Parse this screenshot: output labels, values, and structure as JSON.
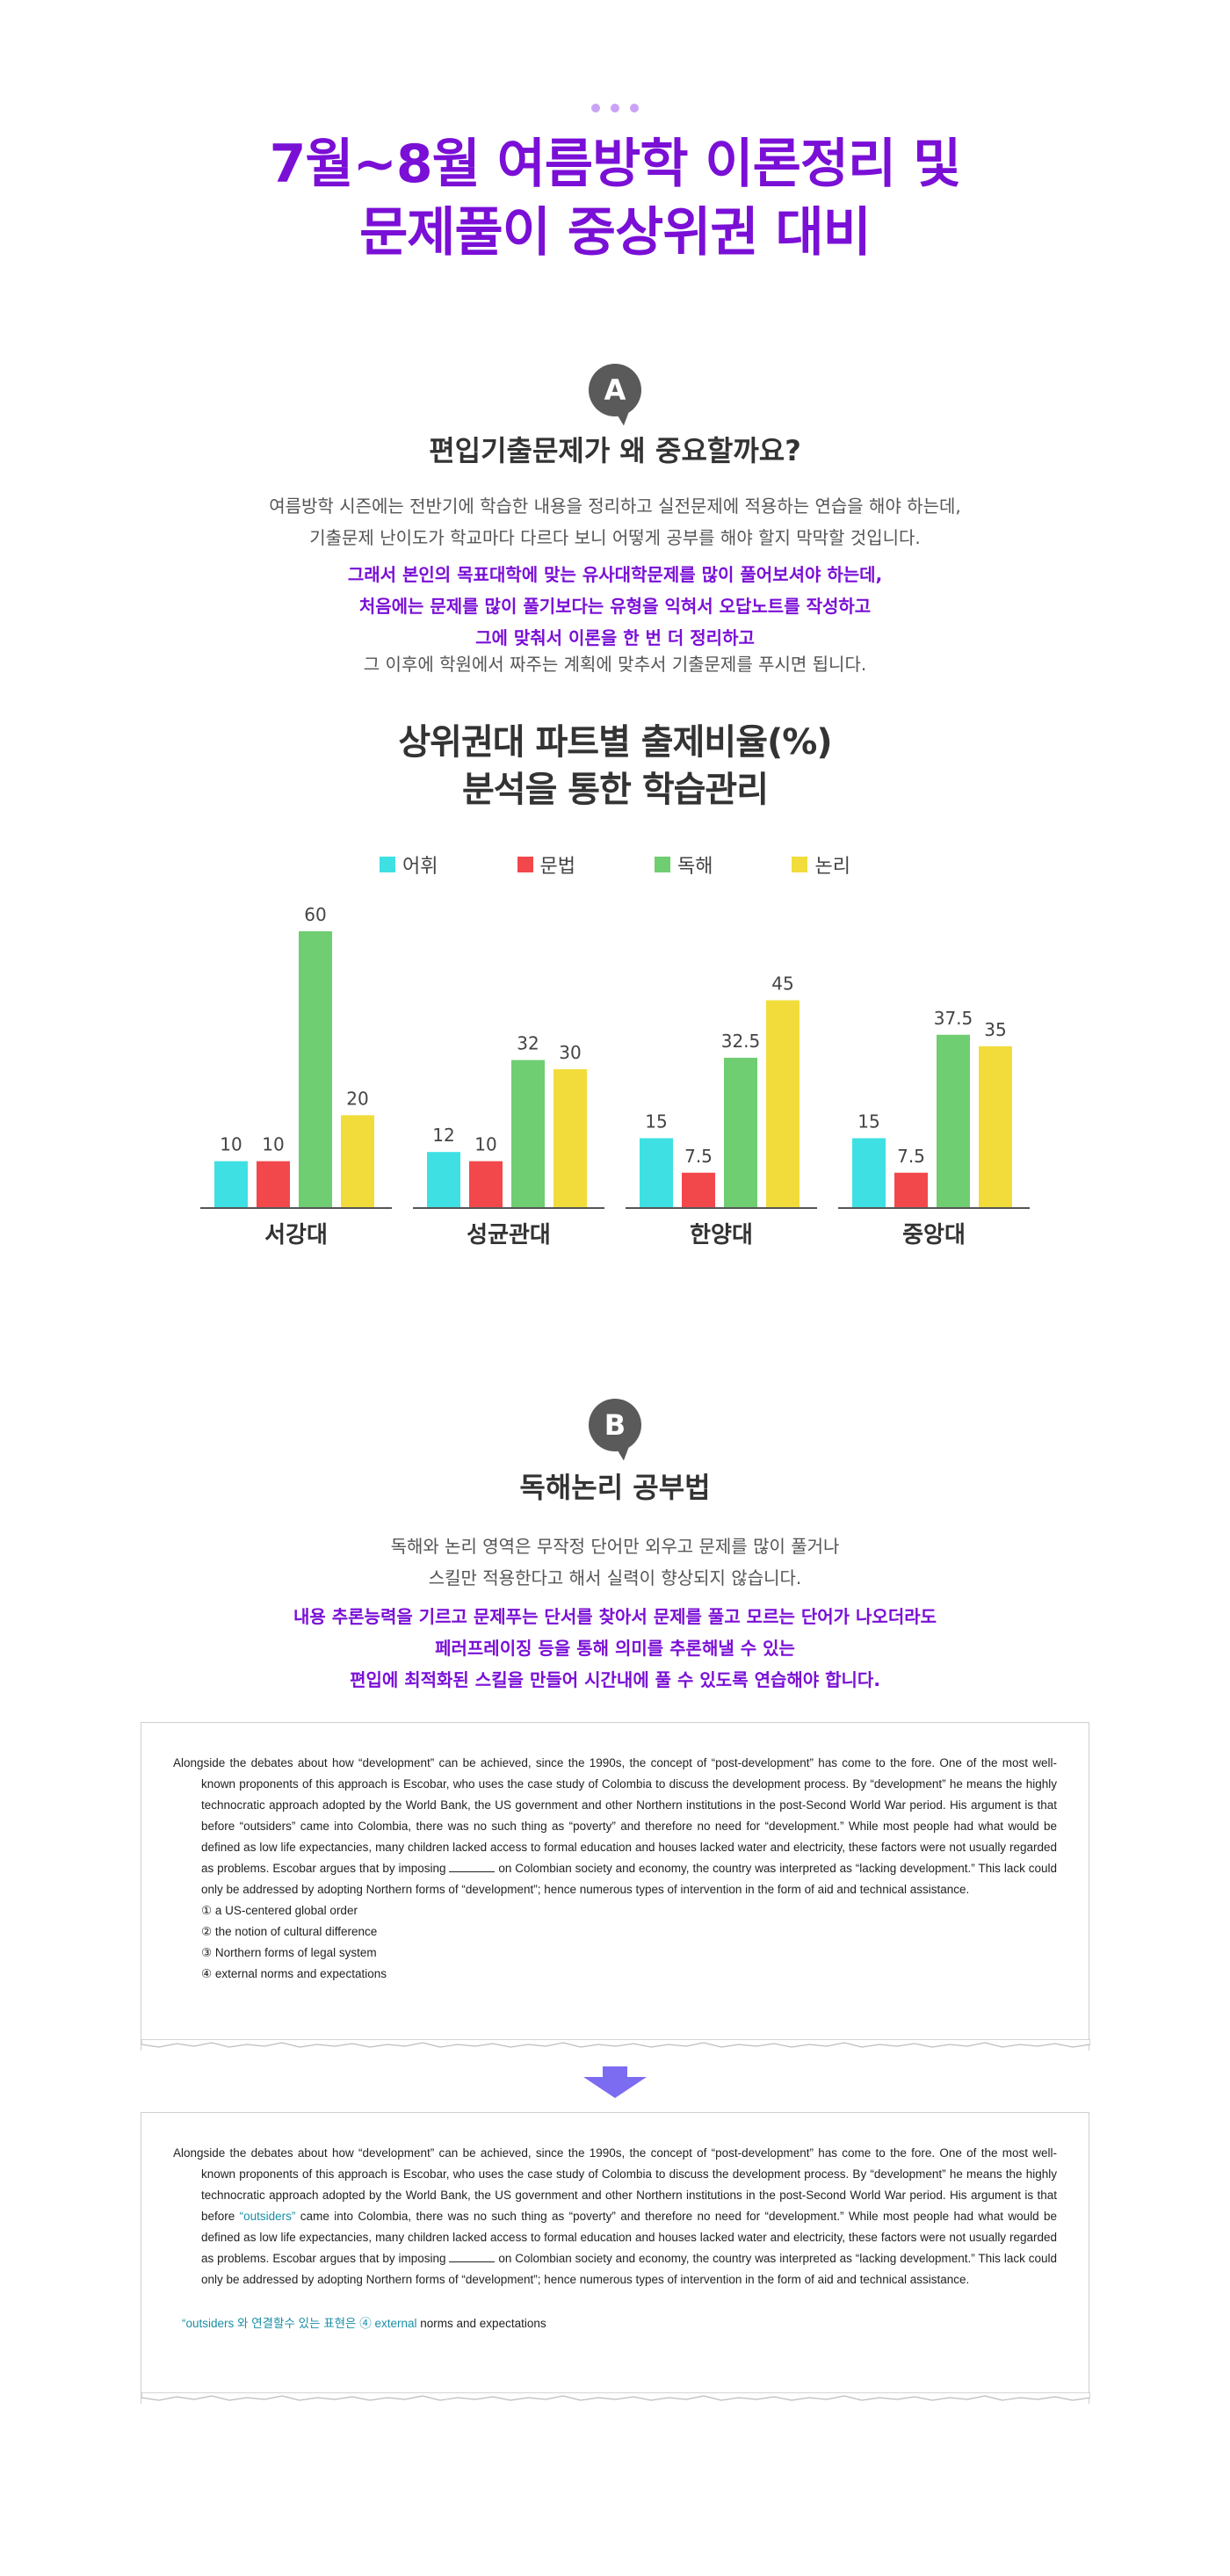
{
  "header": {
    "title_line1": "7월~8월 여름방학 이론정리 및",
    "title_line2": "문제풀이 중상위권 대비"
  },
  "section_a": {
    "badge": "A",
    "title": "편입기출문제가 왜 중요할까요?",
    "para1_line1": "여름방학 시즌에는 전반기에 학습한 내용을 정리하고 실전문제에 적용하는 연습을 해야 하는데,",
    "para1_line2": "기출문제 난이도가 학교마다 다르다 보니 어떻게 공부를 해야 할지 막막할 것입니다.",
    "accent_line1": "그래서 본인의 목표대학에 맞는 유사대학문제를 많이 풀어보셔야 하는데,",
    "accent_line2": "처음에는 문제를 많이 풀기보다는 유형을 익혀서 오답노트를 작성하고",
    "accent_line3": "그에 맞춰서 이론을 한 번 더 정리하고",
    "para2": "그 이후에 학원에서 짜주는 계획에 맞추서 기출문제를 푸시면 됩니다.",
    "chart_title_line1": "상위권대 파트별 출제비율(%)",
    "chart_title_line2": "분석을 통한 학습관리"
  },
  "chart_data": {
    "type": "bar",
    "title": "상위권대 파트별 출제비율(%)",
    "categories": [
      "서강대",
      "성균관대",
      "한양대",
      "중앙대"
    ],
    "series": [
      {
        "name": "어휘",
        "color": "#3ee0e3",
        "values": [
          10,
          12,
          15,
          15
        ]
      },
      {
        "name": "문법",
        "color": "#f2484c",
        "values": [
          10,
          10,
          7.5,
          7.5
        ]
      },
      {
        "name": "독해",
        "color": "#6fcd72",
        "values": [
          60,
          32,
          32.5,
          37.5
        ]
      },
      {
        "name": "논리",
        "color": "#f1dc3c",
        "values": [
          20,
          30,
          45,
          35
        ]
      }
    ],
    "value_labels": [
      [
        "10",
        "12",
        "15",
        "15"
      ],
      [
        "10",
        "10",
        "7.5",
        "7.5"
      ],
      [
        "60",
        "32",
        "32.5",
        "37.5"
      ],
      [
        "20",
        "30",
        "45",
        "35"
      ]
    ],
    "ylim": [
      0,
      60
    ],
    "legend_position": "top-center",
    "grid": false
  },
  "section_b": {
    "badge": "B",
    "title": "독해논리 공부법",
    "para1_line1": "독해와 논리 영역은 무작정 단어만 외우고 문제를 많이 풀거나",
    "para1_line2": "스킬만 적용한다고 해서 실력이 향상되지 않습니다.",
    "accent_line1": "내용 추론능력을 기르고 문제푸는 단서를 찾아서 문제를 풀고 모르는 단어가 나오더라도",
    "accent_line2": "페러프레이징 등을 통해 의미를 추론해낼 수 있는",
    "accent_line3": "편입에 최적화된 스킬을 만들어 시간내에 풀 수 있도록 연습해야 합니다."
  },
  "passage": {
    "part1": "Alongside the debates about how “development” can be achieved, since the 1990s, the concept of “post-development” has come to the fore. One of the most well-known proponents of this approach is Escobar, who uses the case study of Colombia to discuss the development process. By “development” he means the highly technocratic approach adopted by the World Bank, the US government and other Northern institutions in the post-Second World War period. His argument is that before ",
    "outsiders_q": "“outsiders”",
    "part2": " came into Colombia, there was no such thing as “poverty” and therefore no need for “development.” While most people had what would be defined as low life expectancies, many children lacked access to formal education and houses lacked water and electricity, these factors were not usually regarded as problems. Escobar argues that by imposing ",
    "part3": " on Colombian society and economy, the country was interpreted as “lacking development.” This lack could only be addressed by adopting Northern forms of “development”; hence numerous types of intervention in the form of aid and technical assistance.",
    "options": [
      "① a US-centered global order",
      "② the notion of cultural difference",
      "③ Northern forms of legal system",
      "④ external norms and expectations"
    ],
    "hint_prefix": "“outsiders 와 연결할수 있는 표현은 ④ ",
    "hint_external": "external",
    "hint_suffix": " norms and expectations"
  },
  "colors": {
    "accent_purple": "#7a0fd6",
    "badge_gray": "#5a5a5a",
    "arrow_purple": "#7c6cf2",
    "highlight_teal": "#1a8fa6"
  }
}
